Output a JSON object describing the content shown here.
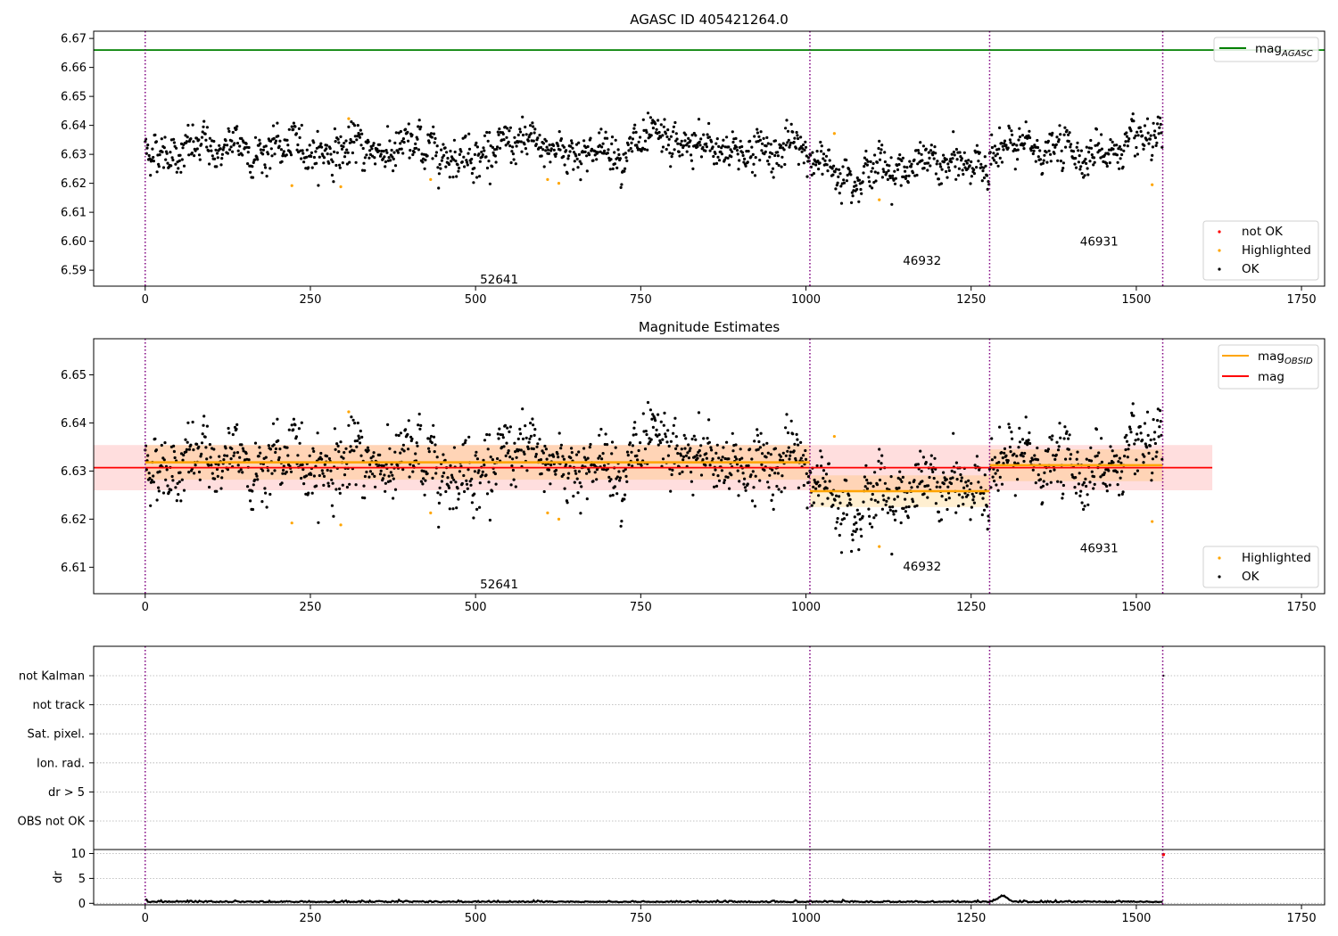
{
  "chart_data": [
    {
      "type": "scatter",
      "title": "AGASC ID 405421264.0",
      "xlim": [
        -78,
        1785
      ],
      "ylim": [
        6.5845,
        6.6725
      ],
      "x_ticks": [
        0,
        250,
        500,
        750,
        1000,
        1250,
        1500,
        1750
      ],
      "y_ticks": [
        6.59,
        6.6,
        6.61,
        6.62,
        6.63,
        6.64,
        6.65,
        6.66,
        6.67
      ],
      "agasc_mag": 6.666,
      "obsid_boundaries": [
        0,
        1006,
        1278,
        1540
      ],
      "segments": [
        {
          "obsid": "52641",
          "x": [
            0,
            1006
          ],
          "mean": 6.6318,
          "std": 0.0036,
          "label_at": [
            500,
            6.587
          ]
        },
        {
          "obsid": "46932",
          "x": [
            1006,
            1278
          ],
          "mean": 6.6258,
          "std": 0.0033,
          "label_at": [
            1140,
            6.5935
          ]
        },
        {
          "obsid": "46931",
          "x": [
            1278,
            1540
          ],
          "mean": 6.6312,
          "std": 0.0033,
          "label_at": [
            1408,
            6.6
          ]
        }
      ],
      "highlighted": [
        [
          222,
          6.6192
        ],
        [
          296,
          6.6188
        ],
        [
          308,
          6.6423
        ],
        [
          432,
          6.6213
        ],
        [
          609,
          6.6213
        ],
        [
          626,
          6.62
        ],
        [
          1043,
          6.6372
        ],
        [
          1111,
          6.6143
        ],
        [
          1524,
          6.6195
        ]
      ],
      "legend": {
        "line_entries": [
          {
            "label": "mag",
            "sub": "AGASC",
            "color": "#008000"
          }
        ],
        "point_entries": [
          {
            "label": "not OK",
            "color": "#ff0000"
          },
          {
            "label": "Highlighted",
            "color": "#ffa500"
          },
          {
            "label": "OK",
            "color": "#000000"
          }
        ]
      }
    },
    {
      "type": "scatter",
      "title": "Magnitude Estimates",
      "xlim": [
        -78,
        1785
      ],
      "ylim": [
        6.6045,
        6.6575
      ],
      "x_ticks": [
        0,
        250,
        500,
        750,
        1000,
        1250,
        1500,
        1750
      ],
      "y_ticks": [
        6.61,
        6.62,
        6.63,
        6.64,
        6.65
      ],
      "global_mag": {
        "mean": 6.6307,
        "std": 0.0047,
        "x": [
          -78,
          1615
        ]
      },
      "segment_labels": [
        {
          "obsid": "52641",
          "label_at": [
            500,
            6.6065
          ]
        },
        {
          "obsid": "46932",
          "label_at": [
            1140,
            6.6102
          ]
        },
        {
          "obsid": "46931",
          "label_at": [
            1408,
            6.614
          ]
        }
      ],
      "legend": {
        "line_entries": [
          {
            "label": "mag",
            "sub": "OBSID",
            "color": "#ffa500"
          },
          {
            "label": "mag",
            "sub": "",
            "color": "#ff0000"
          }
        ],
        "point_entries": [
          {
            "label": "Highlighted",
            "color": "#ffa500"
          },
          {
            "label": "OK",
            "color": "#000000"
          }
        ]
      }
    },
    {
      "type": "scatter",
      "title": "",
      "flag_categories": [
        "not Kalman",
        "not track",
        "Sat. pixel.",
        "Ion. rad.",
        "dr > 5",
        "OBS not OK"
      ],
      "flag_points": [
        {
          "category": "not Kalman",
          "x": 1541
        }
      ]
    },
    {
      "type": "line",
      "title": "",
      "ylabel": "dr",
      "xlim": [
        -78,
        1785
      ],
      "ylim": [
        -0.3,
        10.8
      ],
      "y_ticks": [
        0,
        5,
        10
      ],
      "x_ticks": [
        0,
        250,
        500,
        750,
        1000,
        1250,
        1500,
        1750
      ],
      "dr_bump": {
        "x_center": 1298,
        "peak": 1.2
      },
      "red_point": [
        1541,
        9.8
      ]
    }
  ],
  "colors": {
    "ok": "#000000",
    "highlighted": "#ffa500",
    "not_ok": "#ff0000",
    "agasc_line": "#008000",
    "boundary": "#800080",
    "global_band": "#ffcccc",
    "segment_band": "#ffa500"
  }
}
